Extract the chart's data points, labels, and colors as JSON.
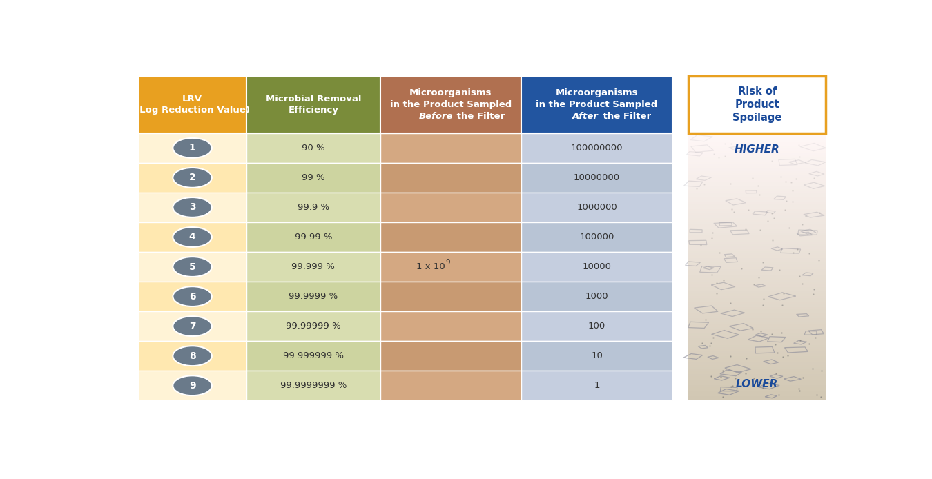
{
  "col_headers_0": "LRV\n(Log Reduction Value)",
  "col_headers_1": "Microbial Removal\nEfficiency",
  "col_headers_2_line1": "Microorganisms",
  "col_headers_2_line2": "in the Product Sampled",
  "col_headers_2_line3_italic": "Before",
  "col_headers_2_line3_normal": " the Filter",
  "col_headers_3_line1": "Microorganisms",
  "col_headers_3_line2": "in the Product Sampled",
  "col_headers_3_line3_italic": "After",
  "col_headers_3_line3_normal": " the Filter",
  "rows": [
    [
      "1",
      "90 %",
      "",
      "100000000"
    ],
    [
      "2",
      "99 %",
      "",
      "10000000"
    ],
    [
      "3",
      "99.9 %",
      "",
      "1000000"
    ],
    [
      "4",
      "99.99 %",
      "",
      "100000"
    ],
    [
      "5",
      "99.999 %",
      "1 x 10^9",
      "10000"
    ],
    [
      "6",
      "99.9999 %",
      "",
      "1000"
    ],
    [
      "7",
      "99.99999 %",
      "",
      "100"
    ],
    [
      "8",
      "99.999999 %",
      "",
      "10"
    ],
    [
      "9",
      "99.9999999 %",
      "",
      "1"
    ]
  ],
  "col_header_bg": [
    "#E8A020",
    "#7A8C3A",
    "#B07050",
    "#2255A0"
  ],
  "col_header_text": "#FFFFFF",
  "col_bgs": [
    "#FFF3D6",
    "#D8DDB0",
    "#D4A882",
    "#C5CEDF"
  ],
  "col_bgs_alt": [
    "#FFE8B0",
    "#CDD4A0",
    "#C89A72",
    "#B8C4D5"
  ],
  "risk_box_bg": "#FFFFFF",
  "risk_box_border": "#E8A020",
  "risk_title": "Risk of\nProduct\nSpoilage",
  "risk_title_color": "#1A4A9A",
  "risk_higher": "HIGHER",
  "risk_lower": "LOWER",
  "risk_text_color": "#1A4A9A",
  "circle_bg": "#6A7A8A",
  "circle_text": "#FFFFFF",
  "fig_bg": "#FFFFFF",
  "text_color": "#333333"
}
